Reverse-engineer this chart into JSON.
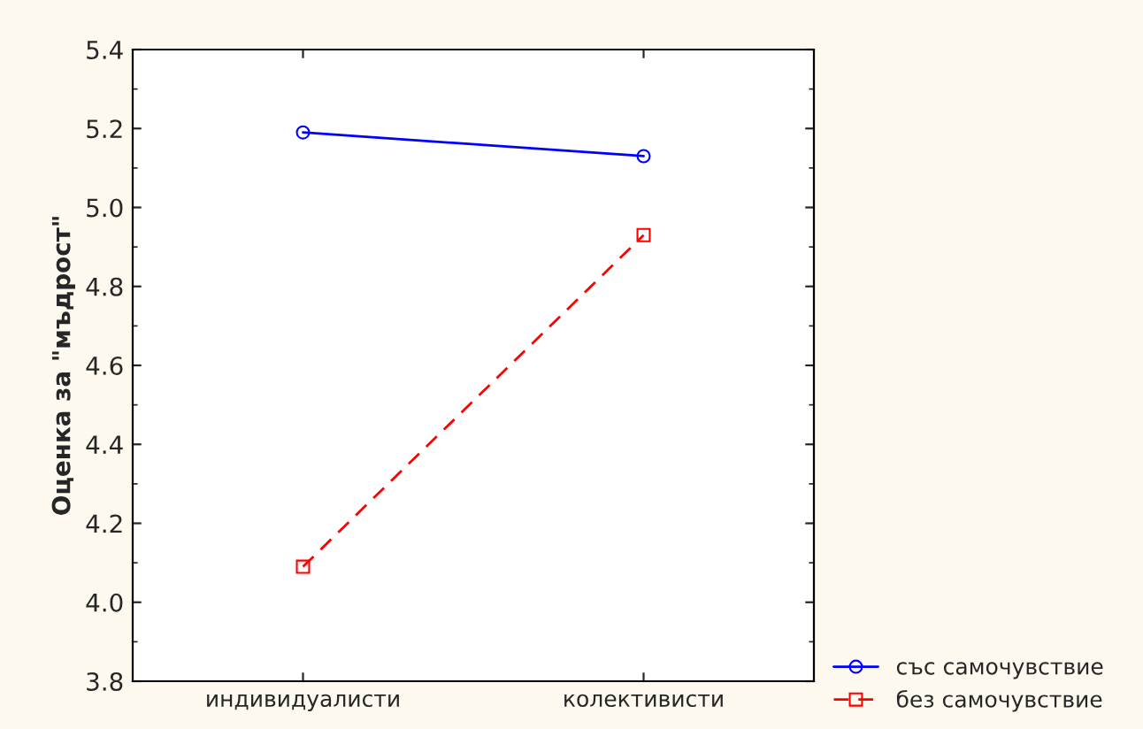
{
  "chart_data": {
    "type": "line",
    "ylabel": "Оценка за \"мъдрост\"",
    "categories": [
      "индивидуалисти",
      "колективисти"
    ],
    "series": [
      {
        "name": "със самочувствие",
        "color": "#0000ff",
        "values": [
          5.19,
          5.13
        ],
        "marker": "circle",
        "line_style": "solid"
      },
      {
        "name": "без самочувствие",
        "color": "#ff0000",
        "values": [
          4.09,
          4.93
        ],
        "marker": "square",
        "line_style": "dashed"
      }
    ],
    "ylim": [
      3.8,
      5.4
    ],
    "yticks": [
      3.8,
      {
        "value": 4.0,
        "label": "4.0"
      },
      4.2,
      4.4,
      4.6,
      4.8,
      {
        "value": 5.0,
        "label": "5.0"
      },
      5.2,
      5.4
    ],
    "grid": false,
    "legend": "bottom right"
  }
}
